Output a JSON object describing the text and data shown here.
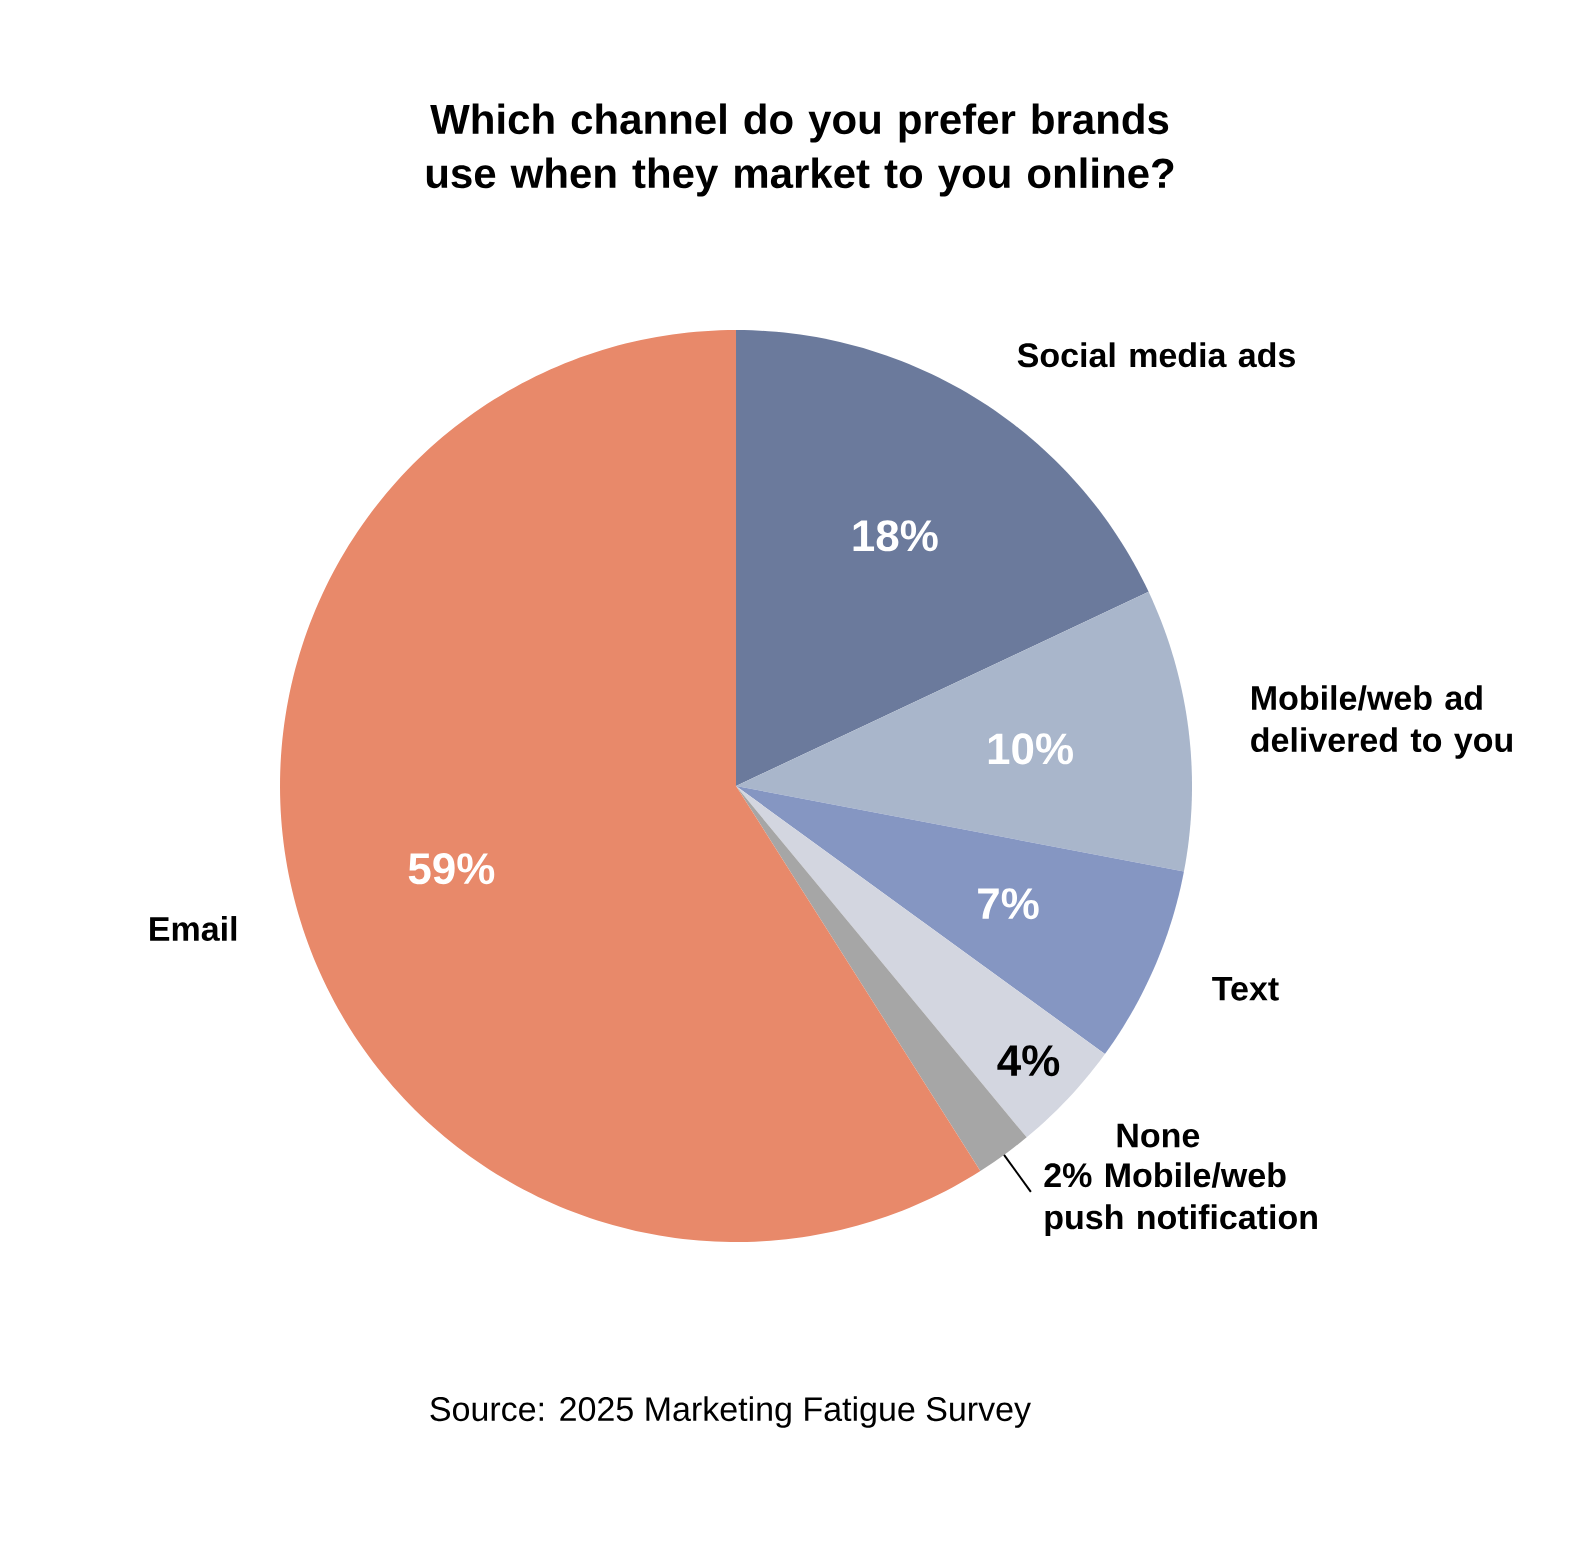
{
  "chart_data": {
    "type": "pie",
    "title": "Which channel do you prefer brands use when they market to you online?",
    "categories": [
      "Social media ads",
      "Mobile/web ad delivered to you",
      "Text",
      "None",
      "Mobile/web push notification",
      "Email"
    ],
    "values": [
      18,
      10,
      7,
      4,
      2,
      59
    ],
    "value_labels": [
      "18%",
      "10%",
      "7%",
      "4%",
      "2%",
      "59%"
    ],
    "colors": [
      "#6b7a9c",
      "#a9b6cb",
      "#8596c2",
      "#d3d6e0",
      "#a6a6a6",
      "#e8896a"
    ],
    "annotations": [
      "Source: 2025 Marketing Fatigue Survey"
    ]
  }
}
